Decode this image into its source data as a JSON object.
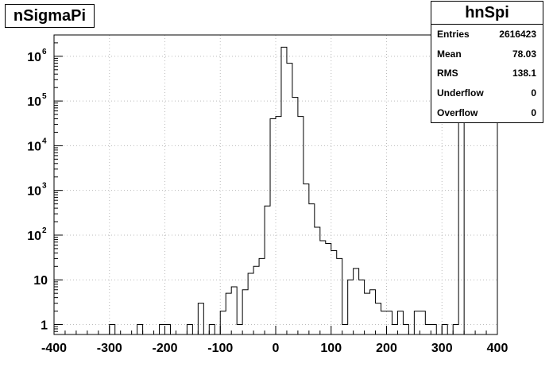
{
  "title": "nSigmaPi",
  "stats": {
    "name": "hnSpi",
    "rows": [
      {
        "label": "Entries",
        "value": "2616423"
      },
      {
        "label": "Mean",
        "value": "78.03"
      },
      {
        "label": "RMS",
        "value": "138.1"
      },
      {
        "label": "Underflow",
        "value": "0"
      },
      {
        "label": "Overflow",
        "value": "0"
      }
    ]
  },
  "chart_data": {
    "type": "bar",
    "title": "nSigmaPi",
    "xlabel": "",
    "ylabel": "",
    "xlim": [
      -400,
      400
    ],
    "ylim": [
      0.6,
      3000000
    ],
    "yscale": "log",
    "grid": true,
    "bin_width": 10,
    "xticks": [
      "-400",
      "-300",
      "-200",
      "-100",
      "0",
      "100",
      "200",
      "300",
      "400"
    ],
    "yticks": [
      {
        "value": 1,
        "base": "1",
        "exp": ""
      },
      {
        "value": 10,
        "base": "10",
        "exp": ""
      },
      {
        "value": 100,
        "base": "10",
        "exp": "2"
      },
      {
        "value": 1000,
        "base": "10",
        "exp": "3"
      },
      {
        "value": 10000,
        "base": "10",
        "exp": "4"
      },
      {
        "value": 100000,
        "base": "10",
        "exp": "5"
      },
      {
        "value": 1000000,
        "base": "10",
        "exp": "6"
      }
    ],
    "bins": [
      {
        "x": -300,
        "y": 1
      },
      {
        "x": -250,
        "y": 1
      },
      {
        "x": -210,
        "y": 1
      },
      {
        "x": -200,
        "y": 1
      },
      {
        "x": -160,
        "y": 1
      },
      {
        "x": -140,
        "y": 3
      },
      {
        "x": -120,
        "y": 1
      },
      {
        "x": -100,
        "y": 2
      },
      {
        "x": -90,
        "y": 5
      },
      {
        "x": -80,
        "y": 7
      },
      {
        "x": -70,
        "y": 1
      },
      {
        "x": -60,
        "y": 6
      },
      {
        "x": -50,
        "y": 14
      },
      {
        "x": -40,
        "y": 20
      },
      {
        "x": -30,
        "y": 30
      },
      {
        "x": -20,
        "y": 450
      },
      {
        "x": -10,
        "y": 40000
      },
      {
        "x": 0,
        "y": 45000
      },
      {
        "x": 10,
        "y": 1600000
      },
      {
        "x": 20,
        "y": 700000
      },
      {
        "x": 30,
        "y": 120000
      },
      {
        "x": 40,
        "y": 45000
      },
      {
        "x": 50,
        "y": 1400
      },
      {
        "x": 60,
        "y": 500
      },
      {
        "x": 70,
        "y": 150
      },
      {
        "x": 80,
        "y": 75
      },
      {
        "x": 90,
        "y": 65
      },
      {
        "x": 100,
        "y": 45
      },
      {
        "x": 110,
        "y": 30
      },
      {
        "x": 120,
        "y": 1
      },
      {
        "x": 130,
        "y": 10
      },
      {
        "x": 140,
        "y": 18
      },
      {
        "x": 150,
        "y": 10
      },
      {
        "x": 160,
        "y": 5
      },
      {
        "x": 170,
        "y": 6
      },
      {
        "x": 180,
        "y": 3
      },
      {
        "x": 190,
        "y": 2
      },
      {
        "x": 200,
        "y": 2
      },
      {
        "x": 210,
        "y": 1
      },
      {
        "x": 220,
        "y": 2
      },
      {
        "x": 230,
        "y": 1
      },
      {
        "x": 250,
        "y": 2
      },
      {
        "x": 260,
        "y": 2
      },
      {
        "x": 270,
        "y": 1
      },
      {
        "x": 280,
        "y": 1
      },
      {
        "x": 300,
        "y": 1
      },
      {
        "x": 320,
        "y": 1
      },
      {
        "x": 330,
        "y": 60000
      }
    ]
  }
}
